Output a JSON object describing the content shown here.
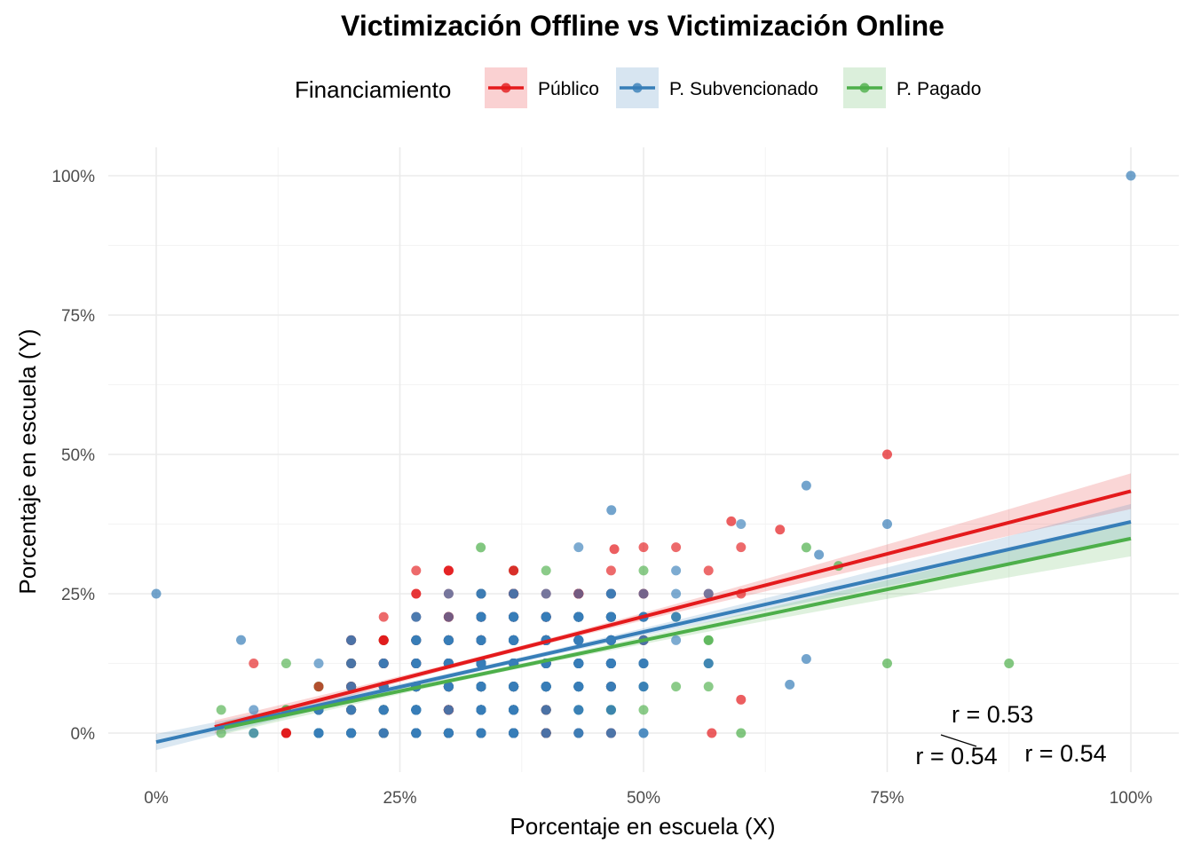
{
  "chart_data": {
    "type": "scatter",
    "title": "Victimización Offline vs Victimización Online",
    "xlabel": "Porcentaje en escuela (X)",
    "ylabel": "Porcentaje en escuela (Y)",
    "xlim": [
      0,
      1
    ],
    "ylim": [
      0,
      1
    ],
    "x_ticks": [
      0,
      0.25,
      0.5,
      0.75,
      1
    ],
    "x_tick_labels": [
      "0%",
      "25%",
      "50%",
      "75%",
      "100%"
    ],
    "y_ticks": [
      0,
      0.25,
      0.5,
      0.75,
      1
    ],
    "y_tick_labels": [
      "0%",
      "25%",
      "50%",
      "75%",
      "100%"
    ],
    "grid": true,
    "legend": {
      "title": "Financiamiento",
      "position": "top"
    },
    "series": [
      {
        "name": "Público",
        "color": "#e41a1c",
        "trend": {
          "intercept": -0.016,
          "slope": 0.45,
          "x_range": [
            0.06,
            1
          ]
        },
        "correlation_label": "r = 0.54",
        "notable_points": [
          [
            0.75,
            0.5
          ],
          [
            0.59,
            0.38
          ],
          [
            0.64,
            0.365
          ],
          [
            0.47,
            0.33
          ],
          [
            0.57,
            0.0
          ],
          [
            0.6,
            0.06
          ]
        ],
        "cloud": {
          "x_mean": 0.34,
          "x_sd": 0.08,
          "y_base": 0.12,
          "n": 320
        }
      },
      {
        "name": "P. Subvencionado",
        "color": "#377eb8",
        "trend": {
          "intercept": -0.016,
          "slope": 0.395,
          "x_range": [
            0,
            1
          ]
        },
        "correlation_label": "r = 0.53",
        "notable_points": [
          [
            0.0,
            0.25
          ],
          [
            1.0,
            1.0
          ],
          [
            0.667,
            0.444
          ],
          [
            0.75,
            0.375
          ],
          [
            0.467,
            0.4
          ],
          [
            0.087,
            0.167
          ],
          [
            0.68,
            0.32
          ],
          [
            0.667,
            0.133
          ],
          [
            0.65,
            0.087
          ]
        ],
        "cloud": {
          "x_mean": 0.36,
          "x_sd": 0.09,
          "y_base": 0.12,
          "n": 420
        }
      },
      {
        "name": "P. Pagado",
        "color": "#4daf4a",
        "trend": {
          "intercept": -0.016,
          "slope": 0.365,
          "x_range": [
            0.07,
            1
          ]
        },
        "correlation_label": "r = 0.54",
        "notable_points": [
          [
            0.75,
            0.125
          ],
          [
            0.875,
            0.125
          ],
          [
            0.7,
            0.3
          ],
          [
            0.667,
            0.333
          ],
          [
            0.6,
            0.0
          ],
          [
            0.333,
            0.333
          ]
        ],
        "cloud": {
          "x_mean": 0.33,
          "x_sd": 0.09,
          "y_base": 0.1,
          "n": 300
        }
      }
    ],
    "annotations": [
      {
        "text": "r = 0.53",
        "x": 0.816,
        "y": 0.035
      },
      {
        "text": "r = 0.54",
        "x": 0.779,
        "y": -0.04
      },
      {
        "text": "r = 0.54",
        "x": 0.891,
        "y": -0.035
      }
    ]
  }
}
